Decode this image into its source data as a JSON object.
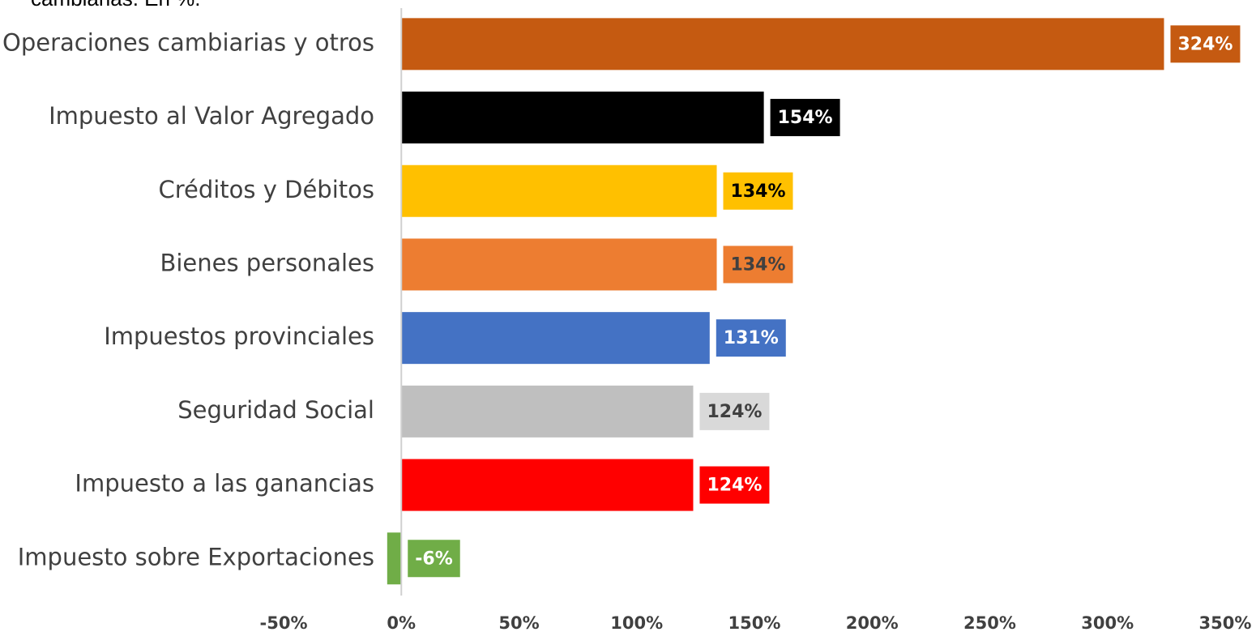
{
  "chart_data": {
    "type": "barh",
    "title": "cambiarias. En %.",
    "categories": [
      "Operaciones cambiarias y otros",
      "Impuesto al Valor Agregado",
      "Créditos y Débitos",
      "Bienes personales",
      "Impuestos provinciales",
      "Seguridad Social",
      "Impuesto a las ganancias",
      "Impuesto sobre Exportaciones"
    ],
    "values": [
      324,
      154,
      134,
      134,
      131,
      124,
      124,
      -6
    ],
    "value_labels": [
      "324%",
      "154%",
      "134%",
      "134%",
      "131%",
      "124%",
      "124%",
      "-6%"
    ],
    "colors": [
      "#c55a11",
      "#000000",
      "#ffc000",
      "#ed7d31",
      "#4472c4",
      "#bfbfbf",
      "#ff0000",
      "#70ad47"
    ],
    "label_box_colors": [
      "#c55a11",
      "#000000",
      "#ffc000",
      "#ed7d31",
      "#4472c4",
      "#d9d9d9",
      "#ff0000",
      "#70ad47"
    ],
    "label_text_colors": [
      "#ffffff",
      "#ffffff",
      "#000000",
      "#404040",
      "#ffffff",
      "#404040",
      "#ffffff",
      "#ffffff"
    ],
    "xlim": [
      -50,
      350
    ],
    "xticks": [
      {
        "value": -50,
        "label": "-50%"
      },
      {
        "value": 0,
        "label": "0%"
      },
      {
        "value": 50,
        "label": "50%"
      },
      {
        "value": 100,
        "label": "100%"
      },
      {
        "value": 150,
        "label": "150%"
      },
      {
        "value": 200,
        "label": "200%"
      },
      {
        "value": 250,
        "label": "250%"
      },
      {
        "value": 300,
        "label": "300%"
      },
      {
        "value": 350,
        "label": "350%"
      }
    ],
    "grid": false
  }
}
